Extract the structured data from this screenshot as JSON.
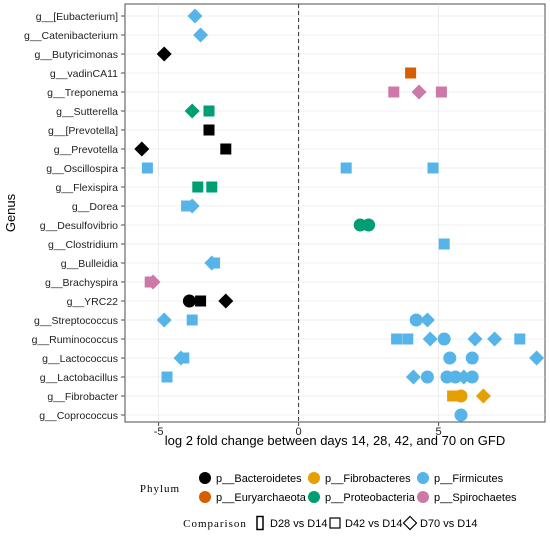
{
  "chart_data": {
    "type": "scatter",
    "xlabel": "log 2 fold change between days 14, 28, 42, and 70 on GFD",
    "ylabel": "Genus",
    "xlim": [
      -6.2,
      8.8
    ],
    "xticks": [
      -5,
      0,
      5
    ],
    "reference_line_x": 0,
    "grid": true,
    "legend_position": "bottom",
    "categories": [
      "g__[Eubacterium]",
      "g__Catenibacterium",
      "g__Butyricimonas",
      "g__vadinCA11",
      "g__Treponema",
      "g__Sutterella",
      "g__[Prevotella]",
      "g__Prevotella",
      "g__Oscillospira",
      "g__Flexispira",
      "g__Dorea",
      "g__Desulfovibrio",
      "g__Clostridium",
      "g__Bulleidia",
      "g__Brachyspira",
      "g__YRC22",
      "g__Streptococcus",
      "g__Ruminococcus",
      "g__Lactococcus",
      "g__Lactobacillus",
      "g__Fibrobacter",
      "g__Coprococcus"
    ],
    "phylum_legend": {
      "title": "Phylum",
      "entries": [
        {
          "label": "p__Bacteroidetes",
          "color": "#000000"
        },
        {
          "label": "p__Fibrobacteres",
          "color": "#E69F00"
        },
        {
          "label": "p__Firmicutes",
          "color": "#56B4E9"
        },
        {
          "label": "p__Euryarchaeota",
          "color": "#D55E00"
        },
        {
          "label": "p__Proteobacteria",
          "color": "#009E73"
        },
        {
          "label": "p__Spirochaetes",
          "color": "#CC79A7"
        }
      ]
    },
    "comparison_legend": {
      "title": "Comparison",
      "entries": [
        {
          "label": "D28 vs D14",
          "shape": "tall-rect"
        },
        {
          "label": "D42 vs D14",
          "shape": "square"
        },
        {
          "label": "D70 vs D14",
          "shape": "diamond"
        }
      ]
    },
    "points": [
      {
        "genus": "g__[Eubacterium]",
        "x": -3.7,
        "phylum": "p__Firmicutes",
        "comparison": "D70 vs D14"
      },
      {
        "genus": "g__Catenibacterium",
        "x": -3.5,
        "phylum": "p__Firmicutes",
        "comparison": "D70 vs D14"
      },
      {
        "genus": "g__Butyricimonas",
        "x": -4.8,
        "phylum": "p__Bacteroidetes",
        "comparison": "D70 vs D14"
      },
      {
        "genus": "g__vadinCA11",
        "x": 4.0,
        "phylum": "p__Euryarchaeota",
        "comparison": "D42 vs D14"
      },
      {
        "genus": "g__Treponema",
        "x": 3.4,
        "phylum": "p__Spirochaetes",
        "comparison": "D42 vs D14"
      },
      {
        "genus": "g__Treponema",
        "x": 4.3,
        "phylum": "p__Spirochaetes",
        "comparison": "D70 vs D14"
      },
      {
        "genus": "g__Treponema",
        "x": 5.1,
        "phylum": "p__Spirochaetes",
        "comparison": "D42 vs D14"
      },
      {
        "genus": "g__Sutterella",
        "x": -3.8,
        "phylum": "p__Proteobacteria",
        "comparison": "D70 vs D14"
      },
      {
        "genus": "g__Sutterella",
        "x": -3.2,
        "phylum": "p__Proteobacteria",
        "comparison": "D42 vs D14"
      },
      {
        "genus": "g__[Prevotella]",
        "x": -3.2,
        "phylum": "p__Bacteroidetes",
        "comparison": "D42 vs D14"
      },
      {
        "genus": "g__Prevotella",
        "x": -5.6,
        "phylum": "p__Bacteroidetes",
        "comparison": "D70 vs D14"
      },
      {
        "genus": "g__Prevotella",
        "x": -2.6,
        "phylum": "p__Bacteroidetes",
        "comparison": "D42 vs D14"
      },
      {
        "genus": "g__Oscillospira",
        "x": -5.4,
        "phylum": "p__Firmicutes",
        "comparison": "D42 vs D14"
      },
      {
        "genus": "g__Oscillospira",
        "x": 1.7,
        "phylum": "p__Firmicutes",
        "comparison": "D42 vs D14"
      },
      {
        "genus": "g__Oscillospira",
        "x": 4.8,
        "phylum": "p__Firmicutes",
        "comparison": "D42 vs D14"
      },
      {
        "genus": "g__Flexispira",
        "x": -3.6,
        "phylum": "p__Proteobacteria",
        "comparison": "D42 vs D14"
      },
      {
        "genus": "g__Flexispira",
        "x": -3.1,
        "phylum": "p__Proteobacteria",
        "comparison": "D42 vs D14"
      },
      {
        "genus": "g__Dorea",
        "x": -4.0,
        "phylum": "p__Firmicutes",
        "comparison": "D42 vs D14"
      },
      {
        "genus": "g__Dorea",
        "x": -3.8,
        "phylum": "p__Firmicutes",
        "comparison": "D70 vs D14"
      },
      {
        "genus": "g__Desulfovibrio",
        "x": 2.2,
        "phylum": "p__Proteobacteria",
        "comparison": "D28 vs D14"
      },
      {
        "genus": "g__Desulfovibrio",
        "x": 2.5,
        "phylum": "p__Proteobacteria",
        "comparison": "D28 vs D14"
      },
      {
        "genus": "g__Clostridium",
        "x": 5.2,
        "phylum": "p__Firmicutes",
        "comparison": "D42 vs D14"
      },
      {
        "genus": "g__Bulleidia",
        "x": -3.0,
        "phylum": "p__Firmicutes",
        "comparison": "D42 vs D14"
      },
      {
        "genus": "g__Bulleidia",
        "x": -3.1,
        "phylum": "p__Firmicutes",
        "comparison": "D70 vs D14"
      },
      {
        "genus": "g__Brachyspira",
        "x": -5.3,
        "phylum": "p__Spirochaetes",
        "comparison": "D42 vs D14"
      },
      {
        "genus": "g__Brachyspira",
        "x": -5.2,
        "phylum": "p__Spirochaetes",
        "comparison": "D70 vs D14"
      },
      {
        "genus": "g__YRC22",
        "x": -3.9,
        "phylum": "p__Bacteroidetes",
        "comparison": "D28 vs D14"
      },
      {
        "genus": "g__YRC22",
        "x": -3.5,
        "phylum": "p__Bacteroidetes",
        "comparison": "D42 vs D14"
      },
      {
        "genus": "g__YRC22",
        "x": -2.6,
        "phylum": "p__Bacteroidetes",
        "comparison": "D70 vs D14"
      },
      {
        "genus": "g__Streptococcus",
        "x": -4.8,
        "phylum": "p__Firmicutes",
        "comparison": "D70 vs D14"
      },
      {
        "genus": "g__Streptococcus",
        "x": -3.8,
        "phylum": "p__Firmicutes",
        "comparison": "D42 vs D14"
      },
      {
        "genus": "g__Streptococcus",
        "x": 4.2,
        "phylum": "p__Firmicutes",
        "comparison": "D28 vs D14"
      },
      {
        "genus": "g__Streptococcus",
        "x": 4.6,
        "phylum": "p__Firmicutes",
        "comparison": "D70 vs D14"
      },
      {
        "genus": "g__Ruminococcus",
        "x": 3.5,
        "phylum": "p__Firmicutes",
        "comparison": "D42 vs D14"
      },
      {
        "genus": "g__Ruminococcus",
        "x": 3.9,
        "phylum": "p__Firmicutes",
        "comparison": "D42 vs D14"
      },
      {
        "genus": "g__Ruminococcus",
        "x": 4.7,
        "phylum": "p__Firmicutes",
        "comparison": "D70 vs D14"
      },
      {
        "genus": "g__Ruminococcus",
        "x": 5.2,
        "phylum": "p__Firmicutes",
        "comparison": "D28 vs D14"
      },
      {
        "genus": "g__Ruminococcus",
        "x": 6.3,
        "phylum": "p__Firmicutes",
        "comparison": "D70 vs D14"
      },
      {
        "genus": "g__Ruminococcus",
        "x": 7.0,
        "phylum": "p__Firmicutes",
        "comparison": "D70 vs D14"
      },
      {
        "genus": "g__Ruminococcus",
        "x": 7.9,
        "phylum": "p__Firmicutes",
        "comparison": "D42 vs D14"
      },
      {
        "genus": "g__Lactococcus",
        "x": -4.1,
        "phylum": "p__Firmicutes",
        "comparison": "D42 vs D14"
      },
      {
        "genus": "g__Lactococcus",
        "x": -4.2,
        "phylum": "p__Firmicutes",
        "comparison": "D70 vs D14"
      },
      {
        "genus": "g__Lactococcus",
        "x": 5.4,
        "phylum": "p__Firmicutes",
        "comparison": "D28 vs D14"
      },
      {
        "genus": "g__Lactococcus",
        "x": 6.2,
        "phylum": "p__Firmicutes",
        "comparison": "D28 vs D14"
      },
      {
        "genus": "g__Lactococcus",
        "x": 8.5,
        "phylum": "p__Firmicutes",
        "comparison": "D70 vs D14"
      },
      {
        "genus": "g__Lactobacillus",
        "x": -4.7,
        "phylum": "p__Firmicutes",
        "comparison": "D42 vs D14"
      },
      {
        "genus": "g__Lactobacillus",
        "x": 4.1,
        "phylum": "p__Firmicutes",
        "comparison": "D70 vs D14"
      },
      {
        "genus": "g__Lactobacillus",
        "x": 4.6,
        "phylum": "p__Firmicutes",
        "comparison": "D28 vs D14"
      },
      {
        "genus": "g__Lactobacillus",
        "x": 5.3,
        "phylum": "p__Firmicutes",
        "comparison": "D28 vs D14"
      },
      {
        "genus": "g__Lactobacillus",
        "x": 5.6,
        "phylum": "p__Firmicutes",
        "comparison": "D28 vs D14"
      },
      {
        "genus": "g__Lactobacillus",
        "x": 5.9,
        "phylum": "p__Firmicutes",
        "comparison": "D70 vs D14"
      },
      {
        "genus": "g__Lactobacillus",
        "x": 6.2,
        "phylum": "p__Firmicutes",
        "comparison": "D28 vs D14"
      },
      {
        "genus": "g__Fibrobacter",
        "x": 5.5,
        "phylum": "p__Fibrobacteres",
        "comparison": "D42 vs D14"
      },
      {
        "genus": "g__Fibrobacter",
        "x": 5.8,
        "phylum": "p__Fibrobacteres",
        "comparison": "D28 vs D14"
      },
      {
        "genus": "g__Fibrobacter",
        "x": 6.6,
        "phylum": "p__Fibrobacteres",
        "comparison": "D70 vs D14"
      },
      {
        "genus": "g__Coprococcus",
        "x": 5.8,
        "phylum": "p__Firmicutes",
        "comparison": "D28 vs D14"
      }
    ]
  }
}
